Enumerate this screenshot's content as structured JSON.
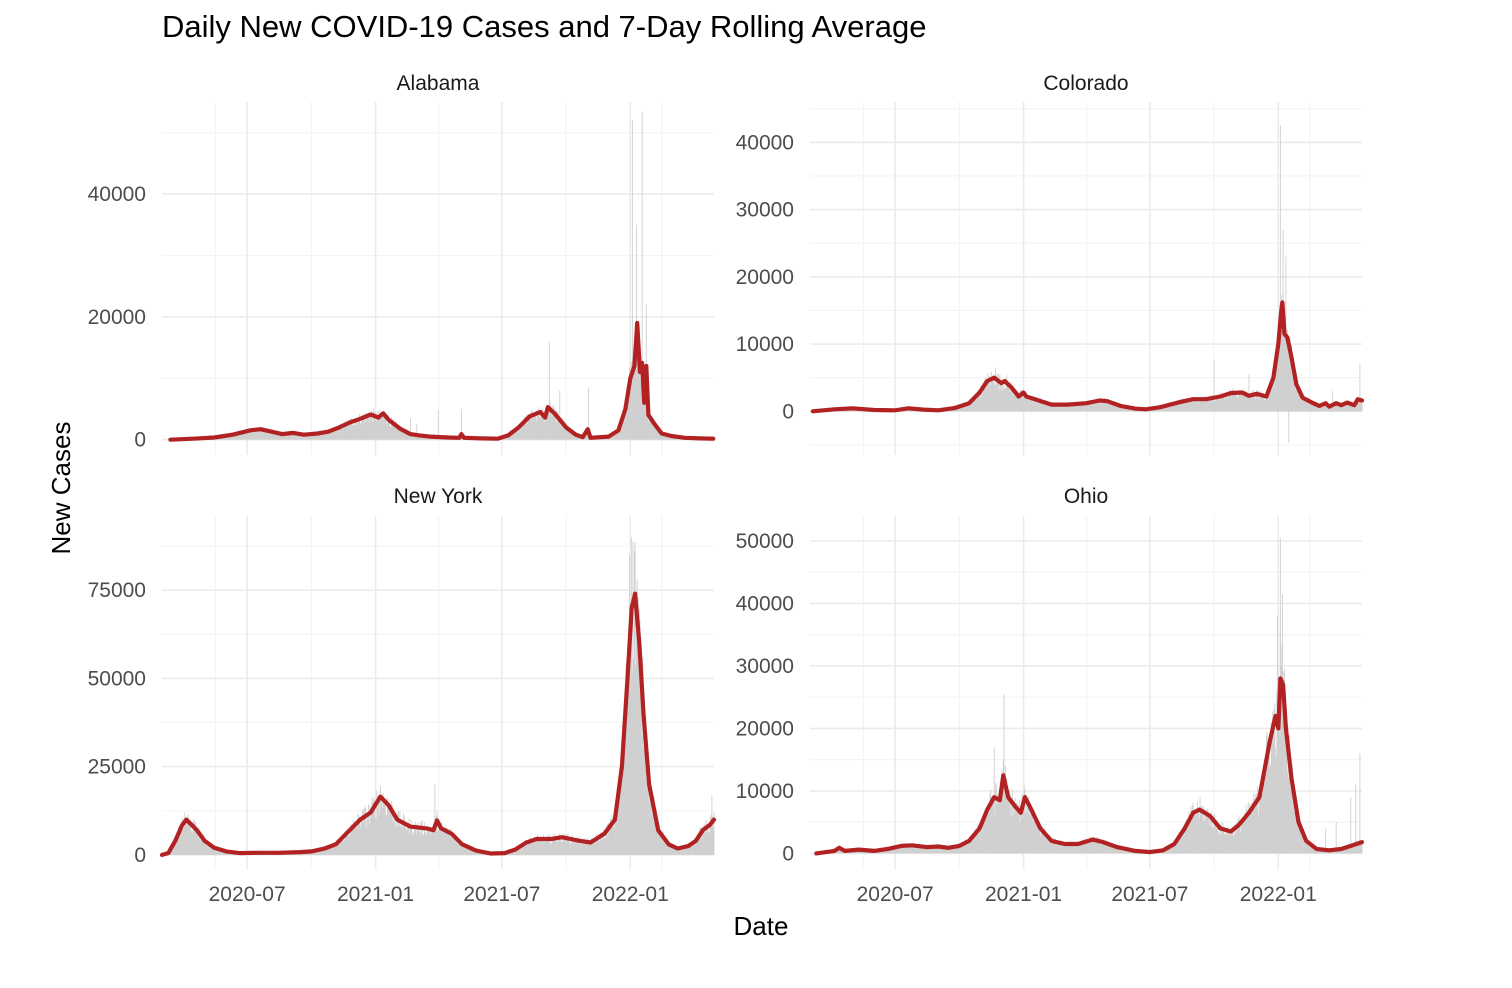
{
  "chart_data": {
    "type": "line",
    "title": "Daily New COVID-19 Cases and 7-Day Rolling Average",
    "xlabel": "Date",
    "ylabel": "New Cases",
    "x_ticks": [
      "2020-07",
      "2021-01",
      "2021-07",
      "2022-01"
    ],
    "x_range": [
      "2020-03-01",
      "2022-05-01"
    ],
    "legend": "none",
    "grid": true,
    "colors": {
      "rolling_average": "#b22222",
      "daily_bars": "#d3d3d3"
    },
    "panels": [
      {
        "state": "Alabama",
        "ylim": [
          -2500,
          55000
        ],
        "yticks": [
          0,
          20000,
          40000
        ],
        "rolling_average": [
          [
            "2020-03-13",
            0
          ],
          [
            "2020-04-15",
            150
          ],
          [
            "2020-05-15",
            350
          ],
          [
            "2020-06-10",
            800
          ],
          [
            "2020-07-05",
            1500
          ],
          [
            "2020-07-20",
            1700
          ],
          [
            "2020-08-05",
            1300
          ],
          [
            "2020-08-20",
            900
          ],
          [
            "2020-09-05",
            1100
          ],
          [
            "2020-09-20",
            800
          ],
          [
            "2020-10-10",
            1000
          ],
          [
            "2020-10-25",
            1300
          ],
          [
            "2020-11-10",
            2000
          ],
          [
            "2020-11-25",
            2800
          ],
          [
            "2020-12-10",
            3400
          ],
          [
            "2020-12-25",
            4100
          ],
          [
            "2021-01-05",
            3600
          ],
          [
            "2021-01-12",
            4300
          ],
          [
            "2021-01-20",
            3200
          ],
          [
            "2021-02-05",
            1800
          ],
          [
            "2021-02-20",
            900
          ],
          [
            "2021-03-05",
            700
          ],
          [
            "2021-03-20",
            500
          ],
          [
            "2021-04-15",
            350
          ],
          [
            "2021-05-01",
            300
          ],
          [
            "2021-05-04",
            900
          ],
          [
            "2021-05-08",
            300
          ],
          [
            "2021-06-01",
            200
          ],
          [
            "2021-06-25",
            150
          ],
          [
            "2021-07-10",
            700
          ],
          [
            "2021-07-25",
            2000
          ],
          [
            "2021-08-10",
            3800
          ],
          [
            "2021-08-25",
            4500
          ],
          [
            "2021-09-01",
            3600
          ],
          [
            "2021-09-05",
            5300
          ],
          [
            "2021-09-15",
            4200
          ],
          [
            "2021-10-01",
            2000
          ],
          [
            "2021-10-15",
            800
          ],
          [
            "2021-10-25",
            400
          ],
          [
            "2021-11-01",
            1700
          ],
          [
            "2021-11-05",
            300
          ],
          [
            "2021-12-01",
            500
          ],
          [
            "2021-12-15",
            1500
          ],
          [
            "2021-12-25",
            5000
          ],
          [
            "2022-01-01",
            10000
          ],
          [
            "2022-01-07",
            12000
          ],
          [
            "2022-01-11",
            19000
          ],
          [
            "2022-01-15",
            11000
          ],
          [
            "2022-01-18",
            12500
          ],
          [
            "2022-01-21",
            6000
          ],
          [
            "2022-01-24",
            12000
          ],
          [
            "2022-01-27",
            4000
          ],
          [
            "2022-02-05",
            2500
          ],
          [
            "2022-02-15",
            1000
          ],
          [
            "2022-03-01",
            600
          ],
          [
            "2022-03-20",
            300
          ],
          [
            "2022-04-10",
            200
          ],
          [
            "2022-04-30",
            150
          ]
        ],
        "daily_spikes": [
          [
            "2022-01-04",
            52000
          ],
          [
            "2022-01-10",
            35000
          ],
          [
            "2022-01-18",
            53500
          ],
          [
            "2022-01-24",
            22000
          ],
          [
            "2021-09-07",
            16000
          ],
          [
            "2021-09-22",
            8000
          ],
          [
            "2021-11-02",
            8500
          ],
          [
            "2021-02-20",
            3500
          ],
          [
            "2021-05-04",
            5000
          ],
          [
            "2021-04-01",
            4800
          ],
          [
            "2021-03-01",
            2500
          ]
        ]
      },
      {
        "state": "Colorado",
        "ylim": [
          -6500,
          46000
        ],
        "yticks": [
          0,
          10000,
          20000,
          30000,
          40000
        ],
        "rolling_average": [
          [
            "2020-03-05",
            0
          ],
          [
            "2020-04-05",
            300
          ],
          [
            "2020-05-01",
            450
          ],
          [
            "2020-06-01",
            200
          ],
          [
            "2020-07-01",
            150
          ],
          [
            "2020-07-20",
            450
          ],
          [
            "2020-08-10",
            250
          ],
          [
            "2020-09-01",
            150
          ],
          [
            "2020-09-25",
            500
          ],
          [
            "2020-10-15",
            1200
          ],
          [
            "2020-10-30",
            2800
          ],
          [
            "2020-11-10",
            4500
          ],
          [
            "2020-11-20",
            5000
          ],
          [
            "2020-11-30",
            4200
          ],
          [
            "2020-12-05",
            4500
          ],
          [
            "2020-12-15",
            3500
          ],
          [
            "2020-12-25",
            2200
          ],
          [
            "2021-01-01",
            2800
          ],
          [
            "2021-01-05",
            2200
          ],
          [
            "2021-01-20",
            1700
          ],
          [
            "2021-02-10",
            1000
          ],
          [
            "2021-03-05",
            1000
          ],
          [
            "2021-04-01",
            1200
          ],
          [
            "2021-04-20",
            1600
          ],
          [
            "2021-05-01",
            1500
          ],
          [
            "2021-05-20",
            800
          ],
          [
            "2021-06-10",
            400
          ],
          [
            "2021-06-25",
            300
          ],
          [
            "2021-07-15",
            600
          ],
          [
            "2021-08-10",
            1300
          ],
          [
            "2021-09-01",
            1800
          ],
          [
            "2021-09-20",
            1800
          ],
          [
            "2021-10-10",
            2200
          ],
          [
            "2021-10-25",
            2700
          ],
          [
            "2021-11-10",
            2800
          ],
          [
            "2021-11-20",
            2300
          ],
          [
            "2021-12-01",
            2600
          ],
          [
            "2021-12-15",
            2200
          ],
          [
            "2021-12-25",
            5000
          ],
          [
            "2022-01-01",
            10000
          ],
          [
            "2022-01-05",
            14500
          ],
          [
            "2022-01-07",
            16200
          ],
          [
            "2022-01-10",
            11500
          ],
          [
            "2022-01-14",
            11000
          ],
          [
            "2022-01-20",
            8000
          ],
          [
            "2022-01-27",
            4000
          ],
          [
            "2022-02-05",
            2000
          ],
          [
            "2022-02-20",
            1200
          ],
          [
            "2022-03-01",
            800
          ],
          [
            "2022-03-10",
            1200
          ],
          [
            "2022-03-15",
            700
          ],
          [
            "2022-03-25",
            1200
          ],
          [
            "2022-04-01",
            900
          ],
          [
            "2022-04-10",
            1300
          ],
          [
            "2022-04-20",
            900
          ],
          [
            "2022-04-25",
            1800
          ],
          [
            "2022-05-01",
            1600
          ]
        ],
        "daily_spikes": [
          [
            "2022-01-04",
            42500
          ],
          [
            "2022-01-08",
            27000
          ],
          [
            "2022-01-12",
            23000
          ],
          [
            "2022-01-16",
            -4700
          ],
          [
            "2021-10-01",
            7500
          ],
          [
            "2021-11-20",
            5500
          ],
          [
            "2020-11-22",
            6500
          ],
          [
            "2022-04-28",
            7000
          ],
          [
            "2022-03-20",
            3000
          ]
        ]
      },
      {
        "state": "New York",
        "ylim": [
          -4000,
          96000
        ],
        "yticks": [
          0,
          25000,
          50000,
          75000
        ],
        "rolling_average": [
          [
            "2020-03-01",
            0
          ],
          [
            "2020-03-10",
            500
          ],
          [
            "2020-03-20",
            4000
          ],
          [
            "2020-03-30",
            8500
          ],
          [
            "2020-04-05",
            10000
          ],
          [
            "2020-04-15",
            8000
          ],
          [
            "2020-04-20",
            7000
          ],
          [
            "2020-05-01",
            4000
          ],
          [
            "2020-05-15",
            2000
          ],
          [
            "2020-06-01",
            1000
          ],
          [
            "2020-06-20",
            500
          ],
          [
            "2020-07-15",
            600
          ],
          [
            "2020-08-15",
            600
          ],
          [
            "2020-09-15",
            800
          ],
          [
            "2020-10-01",
            1000
          ],
          [
            "2020-10-20",
            1800
          ],
          [
            "2020-11-05",
            3000
          ],
          [
            "2020-11-25",
            7000
          ],
          [
            "2020-12-10",
            10000
          ],
          [
            "2020-12-25",
            12000
          ],
          [
            "2021-01-08",
            16500
          ],
          [
            "2021-01-20",
            14000
          ],
          [
            "2021-02-01",
            10000
          ],
          [
            "2021-02-20",
            8000
          ],
          [
            "2021-03-15",
            7500
          ],
          [
            "2021-03-25",
            7000
          ],
          [
            "2021-03-30",
            9800
          ],
          [
            "2021-04-05",
            7500
          ],
          [
            "2021-04-20",
            6000
          ],
          [
            "2021-05-05",
            3000
          ],
          [
            "2021-05-25",
            1200
          ],
          [
            "2021-06-15",
            400
          ],
          [
            "2021-07-05",
            500
          ],
          [
            "2021-07-20",
            1500
          ],
          [
            "2021-08-05",
            3500
          ],
          [
            "2021-08-20",
            4500
          ],
          [
            "2021-09-10",
            4500
          ],
          [
            "2021-09-25",
            5000
          ],
          [
            "2021-10-20",
            4000
          ],
          [
            "2021-11-05",
            3500
          ],
          [
            "2021-11-25",
            6000
          ],
          [
            "2021-12-10",
            10000
          ],
          [
            "2021-12-20",
            25000
          ],
          [
            "2021-12-28",
            50000
          ],
          [
            "2022-01-03",
            70000
          ],
          [
            "2022-01-08",
            74000
          ],
          [
            "2022-01-14",
            60000
          ],
          [
            "2022-01-20",
            40000
          ],
          [
            "2022-01-28",
            20000
          ],
          [
            "2022-02-10",
            7000
          ],
          [
            "2022-02-25",
            3000
          ],
          [
            "2022-03-10",
            1800
          ],
          [
            "2022-03-25",
            2500
          ],
          [
            "2022-04-05",
            4000
          ],
          [
            "2022-04-15",
            7000
          ],
          [
            "2022-04-25",
            8500
          ],
          [
            "2022-05-01",
            10000
          ]
        ],
        "daily_spikes": [
          [
            "2022-01-03",
            90000
          ],
          [
            "2022-01-07",
            86000
          ],
          [
            "2021-12-31",
            85000
          ],
          [
            "2022-01-11",
            78000
          ],
          [
            "2021-03-27",
            20000
          ],
          [
            "2021-01-08",
            19500
          ],
          [
            "2022-04-28",
            17000
          ]
        ]
      },
      {
        "state": "Ohio",
        "ylim": [
          -2500,
          54000
        ],
        "yticks": [
          0,
          10000,
          20000,
          30000,
          40000,
          50000
        ],
        "rolling_average": [
          [
            "2020-03-10",
            0
          ],
          [
            "2020-04-05",
            400
          ],
          [
            "2020-04-12",
            900
          ],
          [
            "2020-04-20",
            400
          ],
          [
            "2020-05-10",
            600
          ],
          [
            "2020-06-01",
            400
          ],
          [
            "2020-06-20",
            700
          ],
          [
            "2020-07-10",
            1200
          ],
          [
            "2020-07-25",
            1300
          ],
          [
            "2020-08-15",
            1000
          ],
          [
            "2020-09-01",
            1100
          ],
          [
            "2020-09-15",
            900
          ],
          [
            "2020-10-01",
            1200
          ],
          [
            "2020-10-15",
            2000
          ],
          [
            "2020-10-30",
            4000
          ],
          [
            "2020-11-10",
            7000
          ],
          [
            "2020-11-20",
            9000
          ],
          [
            "2020-11-28",
            8500
          ],
          [
            "2020-12-03",
            12500
          ],
          [
            "2020-12-10",
            9000
          ],
          [
            "2020-12-20",
            7500
          ],
          [
            "2020-12-28",
            6500
          ],
          [
            "2021-01-03",
            9000
          ],
          [
            "2021-01-10",
            7500
          ],
          [
            "2021-01-25",
            4000
          ],
          [
            "2021-02-10",
            2000
          ],
          [
            "2021-03-01",
            1500
          ],
          [
            "2021-03-20",
            1500
          ],
          [
            "2021-04-10",
            2200
          ],
          [
            "2021-04-25",
            1800
          ],
          [
            "2021-05-15",
            1000
          ],
          [
            "2021-06-10",
            400
          ],
          [
            "2021-07-01",
            200
          ],
          [
            "2021-07-20",
            500
          ],
          [
            "2021-08-05",
            1500
          ],
          [
            "2021-08-20",
            4000
          ],
          [
            "2021-09-01",
            6500
          ],
          [
            "2021-09-10",
            7000
          ],
          [
            "2021-09-25",
            6000
          ],
          [
            "2021-10-10",
            4000
          ],
          [
            "2021-10-25",
            3500
          ],
          [
            "2021-11-05",
            4500
          ],
          [
            "2021-11-20",
            6500
          ],
          [
            "2021-12-05",
            9000
          ],
          [
            "2021-12-20",
            18000
          ],
          [
            "2021-12-28",
            22000
          ],
          [
            "2022-01-01",
            20000
          ],
          [
            "2022-01-04",
            28000
          ],
          [
            "2022-01-08",
            27000
          ],
          [
            "2022-01-12",
            20000
          ],
          [
            "2022-01-20",
            12000
          ],
          [
            "2022-01-30",
            5000
          ],
          [
            "2022-02-10",
            2000
          ],
          [
            "2022-02-25",
            700
          ],
          [
            "2022-03-15",
            500
          ],
          [
            "2022-04-01",
            700
          ],
          [
            "2022-04-15",
            1200
          ],
          [
            "2022-05-01",
            1800
          ]
        ],
        "daily_spikes": [
          [
            "2022-01-04",
            50500
          ],
          [
            "2022-01-07",
            41500
          ],
          [
            "2021-12-31",
            38000
          ],
          [
            "2020-12-04",
            25500
          ],
          [
            "2020-11-20",
            17000
          ],
          [
            "2022-04-28",
            16000
          ],
          [
            "2022-04-22",
            11000
          ],
          [
            "2022-04-15",
            9000
          ],
          [
            "2022-03-25",
            5000
          ],
          [
            "2022-03-10",
            4000
          ]
        ]
      }
    ]
  }
}
